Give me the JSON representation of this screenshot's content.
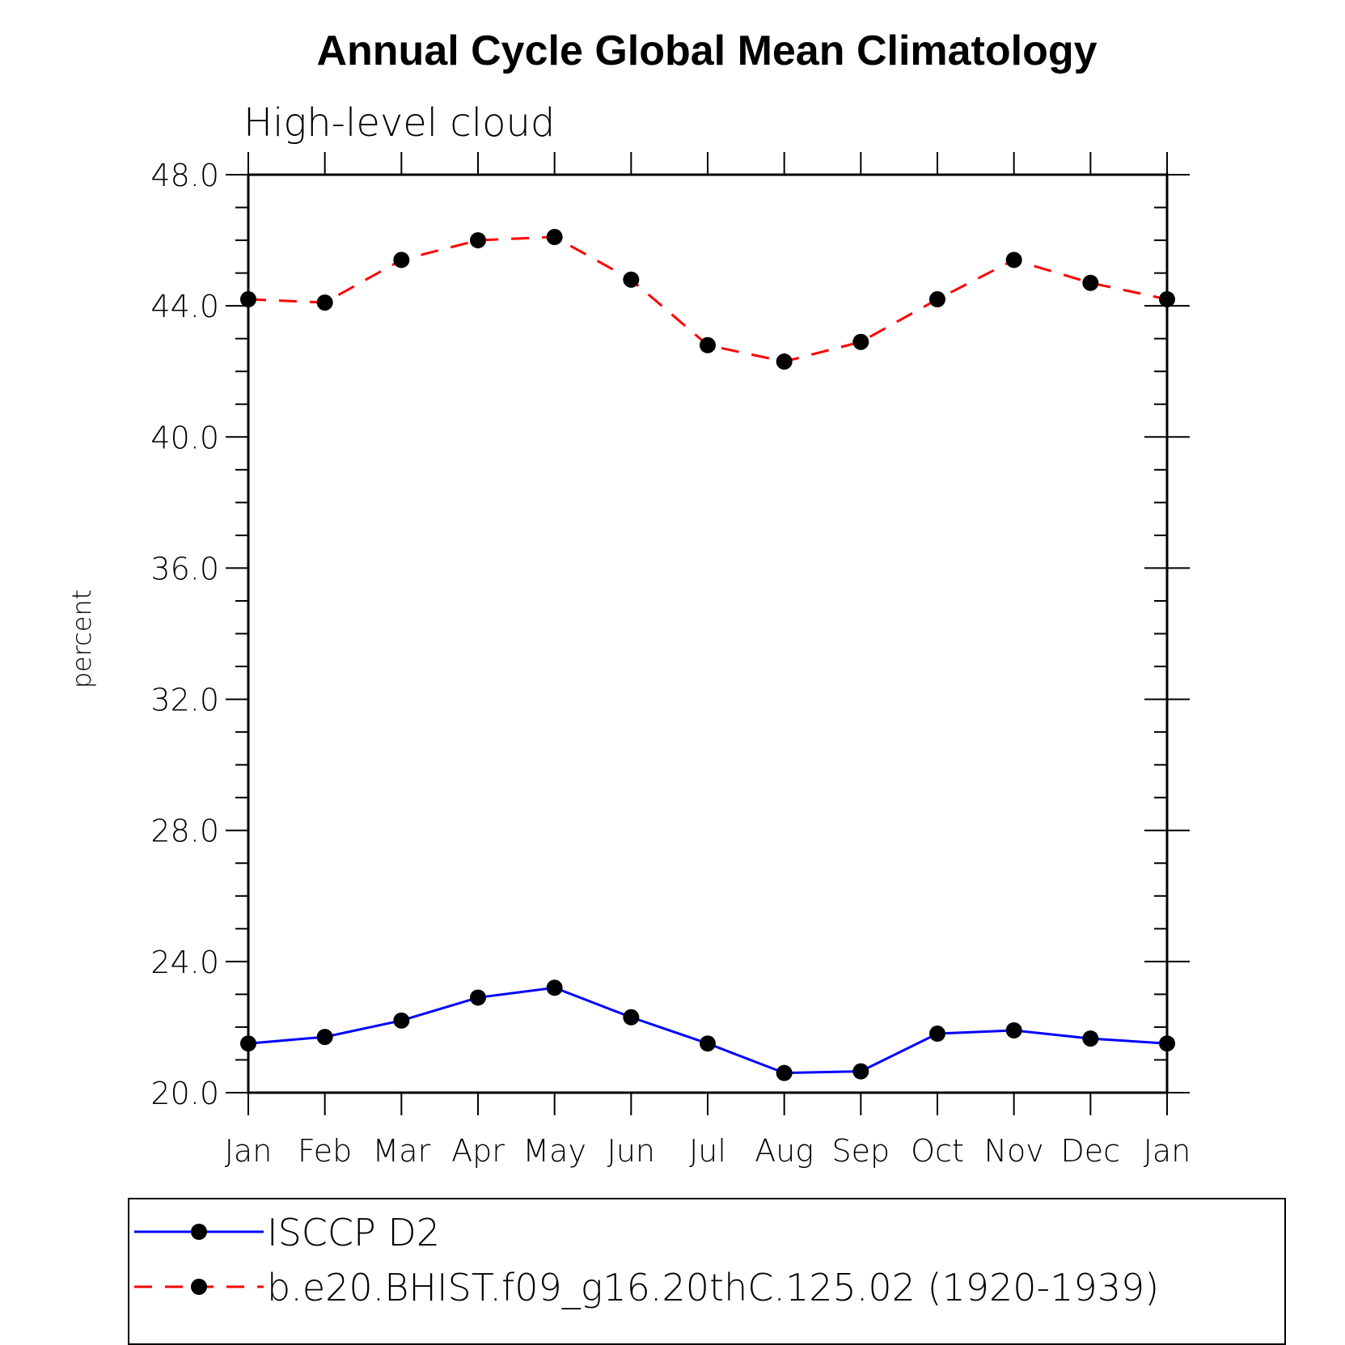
{
  "chart_data": {
    "type": "line",
    "title": "Annual Cycle Global Mean Climatology",
    "subtitle": "High-level cloud",
    "xlabel": "",
    "ylabel": "percent",
    "categories": [
      "Jan",
      "Feb",
      "Mar",
      "Apr",
      "May",
      "Jun",
      "Jul",
      "Aug",
      "Sep",
      "Oct",
      "Nov",
      "Dec",
      "Jan"
    ],
    "ylim": [
      20.0,
      48.0
    ],
    "yticks": [
      "20.0",
      "24.0",
      "28.0",
      "32.0",
      "36.0",
      "40.0",
      "44.0",
      "48.0"
    ],
    "grid": false,
    "legend_position": "bottom",
    "series": [
      {
        "name": "ISCCP D2",
        "color": "#0000ff",
        "dash": "solid",
        "marker": "circle",
        "values": [
          21.5,
          21.7,
          22.2,
          22.9,
          23.2,
          22.3,
          21.5,
          20.6,
          20.65,
          21.8,
          21.9,
          21.65,
          21.5
        ]
      },
      {
        "name": "b.e20.BHIST.f09_g16.20thC.125.02 (1920-1939)",
        "color": "#ff0000",
        "dash": "dashed",
        "marker": "circle",
        "values": [
          44.2,
          44.1,
          45.4,
          46.0,
          46.1,
          44.8,
          42.8,
          42.3,
          42.9,
          44.2,
          45.4,
          44.7,
          44.2
        ]
      }
    ]
  }
}
